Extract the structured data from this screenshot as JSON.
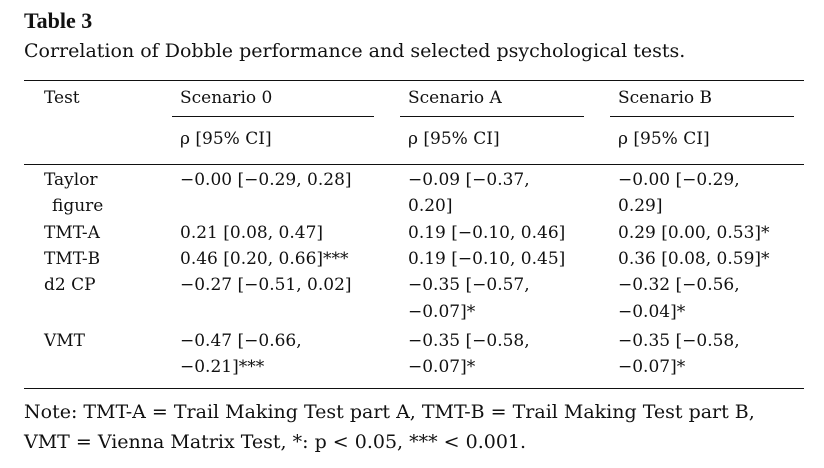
{
  "table_label": "Table 3",
  "caption": "Correlation of Dobble performance and selected psychological tests.",
  "columns": {
    "test": "Test",
    "scenario0": "Scenario 0",
    "scenarioA": "Scenario A",
    "scenarioB": "Scenario B"
  },
  "subheader": {
    "scenario0": "ρ [95% CI]",
    "scenarioA": "ρ [95% CI]",
    "scenarioB": "ρ [95% CI]"
  },
  "rows": [
    {
      "test": [
        "Taylor",
        "  figure"
      ],
      "scenario0": [
        "−0.00 [−0.29, 0.28]"
      ],
      "scenarioA": [
        "−0.09 [−0.37,",
        "0.20]"
      ],
      "scenarioB": [
        "−0.00 [−0.29,",
        "0.29]"
      ]
    },
    {
      "test": [
        "TMT-A"
      ],
      "scenario0": [
        "0.21 [0.08, 0.47]"
      ],
      "scenarioA": [
        "0.19 [−0.10, 0.46]"
      ],
      "scenarioB": [
        "0.29 [0.00, 0.53]*"
      ]
    },
    {
      "test": [
        "TMT-B"
      ],
      "scenario0": [
        "0.46 [0.20, 0.66]***"
      ],
      "scenarioA": [
        "0.19 [−0.10, 0.45]"
      ],
      "scenarioB": [
        "0.36 [0.08, 0.59]*"
      ]
    },
    {
      "test": [
        "d2 CP"
      ],
      "scenario0": [
        "−0.27 [−0.51, 0.02]"
      ],
      "scenarioA": [
        "−0.35 [−0.57,",
        "−0.07]*"
      ],
      "scenarioB": [
        "−0.32 [−0.56,",
        "−0.04]*"
      ]
    },
    {
      "test": [
        "VMT"
      ],
      "scenario0": [
        "−0.47 [−0.66,",
        "−0.21]***"
      ],
      "scenarioA": [
        "−0.35 [−0.58,",
        "−0.07]*"
      ],
      "scenarioB": [
        "−0.35 [−0.58,",
        "−0.07]*"
      ]
    }
  ],
  "note": {
    "line1": "Note: TMT-A = Trail Making Test part A, TMT-B = Trail Making Test part B,",
    "line2": "VMT = Vienna Matrix Test, *: p < 0.05, *** < 0.001."
  }
}
